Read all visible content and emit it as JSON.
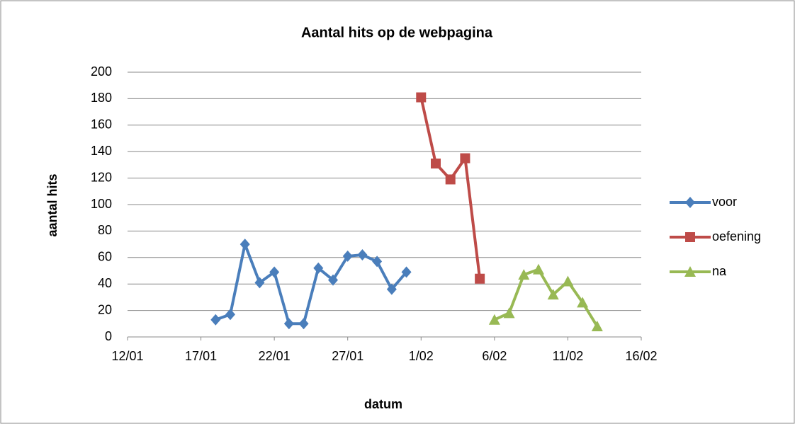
{
  "chart_data": {
    "type": "line",
    "title": "Aantal hits op de webpagina",
    "x_label": "datum",
    "y_label": "aantal hits",
    "xlim": [
      12,
      47
    ],
    "xticks": [
      {
        "value": 12,
        "label": "12/01"
      },
      {
        "value": 17,
        "label": "17/01"
      },
      {
        "value": 22,
        "label": "22/01"
      },
      {
        "value": 27,
        "label": "27/01"
      },
      {
        "value": 32,
        "label": "1/02"
      },
      {
        "value": 37,
        "label": "6/02"
      },
      {
        "value": 42,
        "label": "11/02"
      },
      {
        "value": 47,
        "label": "16/02"
      }
    ],
    "ylim": [
      0,
      200
    ],
    "yticks": [
      0,
      20,
      40,
      60,
      80,
      100,
      120,
      140,
      160,
      180,
      200
    ],
    "grid": true,
    "legend": "right",
    "series": [
      {
        "name": "voor",
        "color": "#4a7ebb",
        "marker": "diamond",
        "x": [
          18,
          19,
          20,
          21,
          22,
          23,
          24,
          25,
          26,
          27,
          28,
          29,
          30,
          31
        ],
        "values": [
          13,
          17,
          70,
          41,
          49,
          10,
          10,
          52,
          43,
          61,
          62,
          57,
          36,
          49
        ]
      },
      {
        "name": "oefening",
        "color": "#be4b48",
        "marker": "square",
        "x": [
          32,
          33,
          34,
          35,
          36
        ],
        "values": [
          181,
          131,
          119,
          135,
          44
        ]
      },
      {
        "name": "na",
        "color": "#98b954",
        "marker": "triangle",
        "x": [
          37,
          38,
          39,
          40,
          41,
          42,
          43,
          44
        ],
        "values": [
          13,
          18,
          47,
          51,
          32,
          42,
          26,
          8
        ]
      }
    ]
  }
}
